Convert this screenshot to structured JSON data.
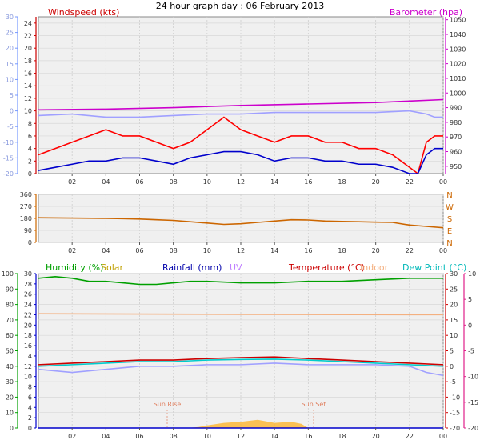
{
  "title": "24 hour graph day : 06 February 2013",
  "x_tick_labels": [
    "02",
    "04",
    "06",
    "08",
    "10",
    "12",
    "14",
    "16",
    "18",
    "20",
    "22",
    "00"
  ],
  "colors": {
    "temperature_axis": "#e0208a",
    "humidity_axis": "#00a000",
    "wind_axis": "#7799ff",
    "pressure_axis": "#cc00cc",
    "direction_axis": "#cc6600"
  },
  "chart_data": [
    {
      "type": "line",
      "panel": "wind-pressure",
      "x_unit": "hour of day",
      "xlim": [
        0,
        24
      ],
      "left_axis_outer": {
        "ticks": [
          -20,
          -15,
          -10,
          -5,
          0,
          5,
          10,
          15,
          20,
          25,
          30
        ],
        "range": [
          -20,
          30
        ]
      },
      "left_axis_inner": {
        "title": "Windspeed (kts)",
        "ticks": [
          0,
          2,
          4,
          6,
          8,
          10,
          12,
          14,
          16,
          18,
          20,
          22,
          24
        ],
        "range": [
          0,
          25
        ]
      },
      "right_axis": {
        "title": "Barometer (hpa)",
        "ticks": [
          950,
          960,
          970,
          980,
          990,
          1000,
          1010,
          1020,
          1030,
          1040,
          1050
        ],
        "range": [
          945,
          1052
        ]
      },
      "series": [
        {
          "name": "Barometer (hpa)",
          "axis": "right",
          "color": "#cc00cc",
          "points": [
            [
              0,
              988.5
            ],
            [
              4,
              989
            ],
            [
              8,
              990
            ],
            [
              12,
              991.5
            ],
            [
              16,
              992.5
            ],
            [
              20,
              993.5
            ],
            [
              22,
              994.5
            ],
            [
              24,
              995.5
            ]
          ]
        },
        {
          "axis": "outer",
          "color": "#a0a0ff",
          "points": [
            [
              0,
              -1.5
            ],
            [
              2,
              -1
            ],
            [
              4,
              -2
            ],
            [
              6,
              -2
            ],
            [
              8,
              -1.5
            ],
            [
              10,
              -1
            ],
            [
              12,
              -1
            ],
            [
              14,
              -0.5
            ],
            [
              16,
              -0.5
            ],
            [
              18,
              -0.5
            ],
            [
              20,
              -0.5
            ],
            [
              22,
              0
            ],
            [
              23,
              -1
            ],
            [
              23.5,
              -2
            ],
            [
              24,
              -2
            ]
          ]
        },
        {
          "axis": "inner",
          "color": "#ff0000",
          "points": [
            [
              0,
              3
            ],
            [
              1,
              4
            ],
            [
              2,
              5
            ],
            [
              3,
              6
            ],
            [
              4,
              7
            ],
            [
              5,
              6
            ],
            [
              6,
              6
            ],
            [
              7,
              5
            ],
            [
              8,
              4
            ],
            [
              9,
              5
            ],
            [
              10,
              7
            ],
            [
              11,
              9
            ],
            [
              12,
              7
            ],
            [
              13,
              6
            ],
            [
              14,
              5
            ],
            [
              15,
              6
            ],
            [
              16,
              6
            ],
            [
              17,
              5
            ],
            [
              18,
              5
            ],
            [
              19,
              4
            ],
            [
              20,
              4
            ],
            [
              21,
              3
            ],
            [
              22,
              1
            ],
            [
              22.5,
              0
            ],
            [
              23,
              5
            ],
            [
              23.5,
              6
            ],
            [
              24,
              6
            ]
          ]
        },
        {
          "axis": "inner",
          "color": "#0000cc",
          "points": [
            [
              0,
              0.5
            ],
            [
              1,
              1
            ],
            [
              2,
              1.5
            ],
            [
              3,
              2
            ],
            [
              4,
              2
            ],
            [
              5,
              2.5
            ],
            [
              6,
              2.5
            ],
            [
              7,
              2
            ],
            [
              8,
              1.5
            ],
            [
              9,
              2.5
            ],
            [
              10,
              3
            ],
            [
              11,
              3.5
            ],
            [
              12,
              3.5
            ],
            [
              13,
              3
            ],
            [
              14,
              2
            ],
            [
              15,
              2.5
            ],
            [
              16,
              2.5
            ],
            [
              17,
              2
            ],
            [
              18,
              2
            ],
            [
              19,
              1.5
            ],
            [
              20,
              1.5
            ],
            [
              21,
              1
            ],
            [
              22,
              0
            ],
            [
              22.5,
              0
            ],
            [
              23,
              3
            ],
            [
              23.5,
              4
            ],
            [
              24,
              4
            ]
          ]
        }
      ]
    },
    {
      "type": "line",
      "panel": "wind-direction",
      "xlim": [
        0,
        24
      ],
      "left_axis": {
        "ticks": [
          0,
          90,
          180,
          270,
          360
        ],
        "range": [
          0,
          360
        ]
      },
      "right_axis_labels": [
        "N",
        "W",
        "S",
        "E",
        "N"
      ],
      "series": [
        {
          "color": "#cc6600",
          "points": [
            [
              0,
              185
            ],
            [
              4,
              180
            ],
            [
              5,
              178
            ],
            [
              6,
              175
            ],
            [
              7,
              170
            ],
            [
              8,
              165
            ],
            [
              9,
              155
            ],
            [
              10,
              145
            ],
            [
              11,
              135
            ],
            [
              12,
              140
            ],
            [
              13,
              150
            ],
            [
              14,
              160
            ],
            [
              15,
              170
            ],
            [
              16,
              168
            ],
            [
              17,
              160
            ],
            [
              18,
              157
            ],
            [
              19,
              155
            ],
            [
              20,
              152
            ],
            [
              21,
              150
            ],
            [
              22,
              130
            ],
            [
              23,
              120
            ],
            [
              24,
              110
            ]
          ]
        }
      ]
    },
    {
      "type": "line",
      "panel": "temperature-humidity",
      "xlim": [
        0,
        24
      ],
      "left_axis_outer": {
        "ticks": [
          0,
          10,
          20,
          30,
          40,
          50,
          60,
          70,
          80,
          90,
          100
        ],
        "range": [
          0,
          100
        ]
      },
      "left_axis_inner": {
        "ticks": [
          0,
          2,
          4,
          6,
          8,
          10,
          12,
          14,
          16,
          18,
          20,
          22,
          24,
          26,
          28,
          30
        ],
        "range": [
          0,
          30
        ]
      },
      "right_axis_outer": {
        "ticks": [
          -20,
          -15,
          -10,
          -5,
          0,
          5,
          10,
          15,
          20,
          25,
          30
        ],
        "range": [
          -20,
          30
        ]
      },
      "right_axis_inner": {
        "ticks": [
          -20,
          -15,
          -10,
          -5,
          0,
          5,
          10
        ],
        "range": [
          -20,
          10
        ]
      },
      "legend": [
        "Humidity (%)",
        "Solar",
        "Rainfall (mm)",
        "UV",
        "Temperature (°C)",
        "Indoor",
        "Dew Point (°C)"
      ],
      "annotations": [
        "Sun Rise",
        "Sun Set"
      ],
      "sun_rise_label": "Sun Rise",
      "sun_set_label": "Sun Set",
      "series": [
        {
          "name": "Humidity (%)",
          "axis": "outer",
          "color": "#00a000",
          "points": [
            [
              0,
              97
            ],
            [
              1,
              98
            ],
            [
              2,
              97
            ],
            [
              3,
              95
            ],
            [
              4,
              95
            ],
            [
              5,
              94
            ],
            [
              6,
              93
            ],
            [
              7,
              93
            ],
            [
              8,
              94
            ],
            [
              9,
              95
            ],
            [
              10,
              95
            ],
            [
              12,
              94
            ],
            [
              14,
              94
            ],
            [
              16,
              95
            ],
            [
              18,
              95
            ],
            [
              20,
              96
            ],
            [
              22,
              97
            ],
            [
              24,
              97
            ]
          ]
        },
        {
          "name": "Indoor",
          "axis": "right_outer",
          "color": "#f4b080",
          "points": [
            [
              0,
              17
            ],
            [
              12,
              16.8
            ],
            [
              24,
              16.7
            ]
          ]
        },
        {
          "name": "Temperature (°C)",
          "axis": "right_outer",
          "color": "#cc0000",
          "points": [
            [
              0,
              0.5
            ],
            [
              2,
              1
            ],
            [
              4,
              1.5
            ],
            [
              6,
              2
            ],
            [
              8,
              2
            ],
            [
              10,
              2.5
            ],
            [
              12,
              2.8
            ],
            [
              14,
              3
            ],
            [
              16,
              2.5
            ],
            [
              18,
              2
            ],
            [
              20,
              1.5
            ],
            [
              22,
              1
            ],
            [
              24,
              0.5
            ]
          ]
        },
        {
          "name": "Dew Point (°C)",
          "axis": "right_outer",
          "color": "#00cccc",
          "points": [
            [
              0,
              0
            ],
            [
              2,
              0.5
            ],
            [
              4,
              1
            ],
            [
              6,
              1.5
            ],
            [
              8,
              1.5
            ],
            [
              10,
              2
            ],
            [
              12,
              2.2
            ],
            [
              14,
              2.3
            ],
            [
              16,
              2
            ],
            [
              18,
              1.5
            ],
            [
              20,
              1
            ],
            [
              22,
              0.5
            ],
            [
              24,
              0
            ]
          ]
        },
        {
          "axis": "right_outer",
          "color": "#a0a0ff",
          "points": [
            [
              0,
              -1
            ],
            [
              2,
              -2
            ],
            [
              4,
              -1
            ],
            [
              6,
              0
            ],
            [
              8,
              0
            ],
            [
              10,
              0.5
            ],
            [
              12,
              0.5
            ],
            [
              14,
              1
            ],
            [
              16,
              0.5
            ],
            [
              18,
              0.5
            ],
            [
              20,
              0.5
            ],
            [
              22,
              0
            ],
            [
              23,
              -2
            ],
            [
              24,
              -3
            ]
          ]
        },
        {
          "name": "Solar",
          "axis": "inner",
          "color": "#ffb020",
          "fill": true,
          "points": [
            [
              8.8,
              0
            ],
            [
              9.5,
              0.2
            ],
            [
              10,
              0.5
            ],
            [
              11,
              1
            ],
            [
              12,
              1.2
            ],
            [
              13,
              1.6
            ],
            [
              14,
              1
            ],
            [
              15,
              1.2
            ],
            [
              15.6,
              0.8
            ],
            [
              16,
              0
            ]
          ]
        },
        {
          "name": "Rainfall (mm)",
          "axis": "inner",
          "color": "#0000cc",
          "points": [
            [
              0,
              0
            ],
            [
              24,
              0
            ]
          ]
        }
      ]
    }
  ]
}
